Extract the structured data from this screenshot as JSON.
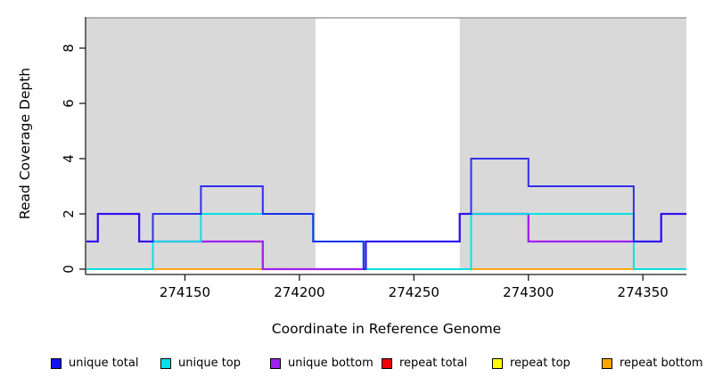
{
  "chart_data": {
    "type": "line",
    "subtype": "step-coverage-plot",
    "title": "",
    "xlabel": "Coordinate in Reference Genome",
    "ylabel": "Read Coverage Depth",
    "xlim": [
      274107,
      274369
    ],
    "ylim": [
      0,
      9.1
    ],
    "xticks": [
      274150,
      274200,
      274250,
      274300,
      274350
    ],
    "yticks": [
      0,
      2,
      4,
      6,
      8
    ],
    "grid": false,
    "legend_position": "bottom",
    "shade_color": "#D9D9D9",
    "shaded_regions": [
      {
        "from": 274107,
        "to": 274207
      },
      {
        "from": 274270,
        "to": 274369
      }
    ],
    "unshaded_gap": {
      "from": 274207,
      "to": 274270
    },
    "series": [
      {
        "name": "unique total",
        "color": "#1212EE",
        "steps": [
          [
            274107,
            1
          ],
          [
            274112,
            2
          ],
          [
            274130,
            1
          ],
          [
            274136,
            2
          ],
          [
            274157,
            3
          ],
          [
            274184,
            2
          ],
          [
            274206,
            1
          ],
          [
            274228,
            0
          ],
          [
            274229,
            1
          ],
          [
            274270,
            2
          ],
          [
            274275,
            4
          ],
          [
            274300,
            3
          ],
          [
            274346,
            1
          ],
          [
            274358,
            2
          ],
          [
            274369,
            2
          ]
        ]
      },
      {
        "name": "unique top",
        "color": "#00E0E6",
        "steps": [
          [
            274107,
            0
          ],
          [
            274136,
            1
          ],
          [
            274157,
            2
          ],
          [
            274206,
            1
          ],
          [
            274228,
            0
          ],
          [
            274275,
            2
          ],
          [
            274346,
            0
          ],
          [
            274369,
            0
          ]
        ]
      },
      {
        "name": "unique bottom",
        "color": "#A020F0",
        "steps": [
          [
            274107,
            1
          ],
          [
            274112,
            2
          ],
          [
            274130,
            1
          ],
          [
            274184,
            0
          ],
          [
            274229,
            1
          ],
          [
            274270,
            2
          ],
          [
            274300,
            1
          ],
          [
            274358,
            2
          ],
          [
            274369,
            2
          ]
        ]
      },
      {
        "name": "repeat total",
        "color": "#EE0000",
        "steps": [
          [
            274107,
            0
          ],
          [
            274369,
            0
          ]
        ]
      },
      {
        "name": "repeat top",
        "color": "#FFFF00",
        "steps": [
          [
            274107,
            0
          ],
          [
            274369,
            0
          ]
        ]
      },
      {
        "name": "repeat bottom",
        "color": "#FFA500",
        "steps": [
          [
            274107,
            0
          ],
          [
            274369,
            0
          ]
        ]
      }
    ],
    "baseline_visible_segments": [
      {
        "from": 274107,
        "to": 274136,
        "color": "#8CCF8C"
      },
      {
        "from": 274136,
        "to": 274184,
        "color": "#FFA500"
      },
      {
        "from": 274184,
        "to": 274229,
        "color": "#E8506B"
      },
      {
        "from": 274229,
        "to": 274275,
        "color": "#8CCF8C"
      },
      {
        "from": 274275,
        "to": 274346,
        "color": "#FFA500"
      },
      {
        "from": 274346,
        "to": 274369,
        "color": "#8CCF8C"
      }
    ]
  }
}
